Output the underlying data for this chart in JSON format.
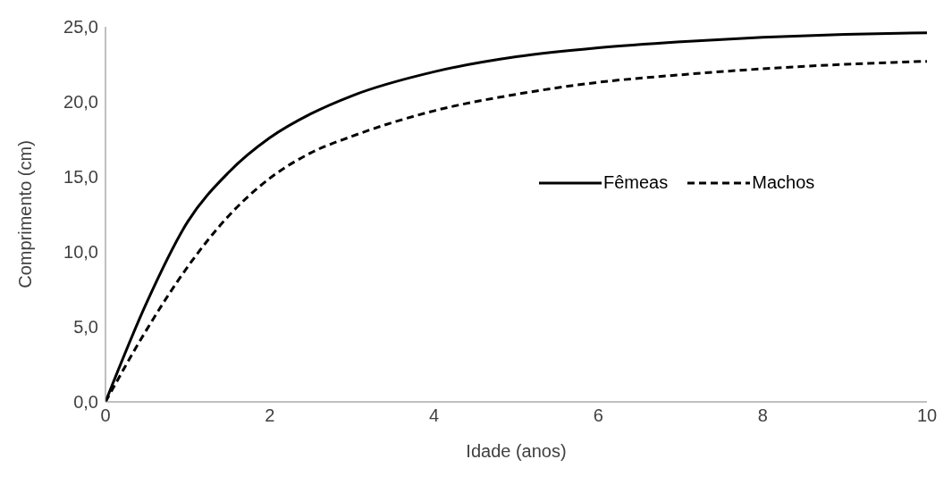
{
  "chart_data": {
    "type": "line",
    "xlabel": "Idade (anos)",
    "ylabel": "Comprimento (cm)",
    "xlim": [
      0,
      10
    ],
    "xticks": [
      0,
      2,
      4,
      6,
      8,
      10
    ],
    "ylim": [
      0,
      25
    ],
    "yticks": [
      {
        "value": 0,
        "label": "0,0"
      },
      {
        "value": 5,
        "label": "5,0"
      },
      {
        "value": 10,
        "label": "10,0"
      },
      {
        "value": 15,
        "label": "15,0"
      },
      {
        "value": 20,
        "label": "20,0"
      },
      {
        "value": 25,
        "label": "25,0"
      }
    ],
    "grid": false,
    "legend": "right",
    "marker": "none",
    "x": [
      0,
      0.5,
      1,
      1.5,
      2,
      2.5,
      3,
      4,
      5,
      6,
      7,
      8,
      9,
      10
    ],
    "series": [
      {
        "name": "Fêmeas",
        "color": "#000000",
        "line_style": "solid",
        "values": [
          0,
          6.6,
          12.0,
          15.3,
          17.6,
          19.2,
          20.4,
          22.0,
          23.0,
          23.6,
          24.0,
          24.3,
          24.5,
          24.6
        ]
      },
      {
        "name": "Machos",
        "color": "#000000",
        "line_style": "dashed",
        "values": [
          0,
          4.8,
          9.0,
          12.4,
          14.9,
          16.6,
          17.7,
          19.4,
          20.5,
          21.3,
          21.8,
          22.2,
          22.5,
          22.7
        ]
      }
    ]
  }
}
